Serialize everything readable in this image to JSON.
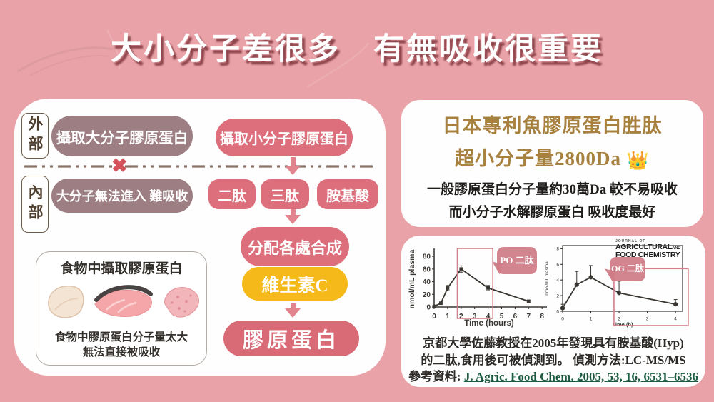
{
  "title": "大小分子差很多　有無吸收很重要",
  "colors": {
    "background": "#e9a2a8",
    "title_shadow": "#863c42",
    "mauve_pill": "#9d7e83",
    "rose_pill": "#dc6f7b",
    "yellow_pill": "#f5ba19",
    "gold_text": "#a8813e",
    "chart_highlight_pink": "#d2808b",
    "link_green": "#1d5a3f"
  },
  "left_panel": {
    "outside_label": "外部",
    "inside_label": "內部",
    "big_molecule_pill": "攝取大分子膠原蛋白",
    "small_molecule_pill": "攝取小分子膠原蛋白",
    "x_mark": "✖",
    "blocked_pill": "大分子無法進入 難吸收",
    "peptide_pills": [
      "二肽",
      "三肽",
      "胺基酸"
    ],
    "synthesis_pill": "分配各處合成",
    "vitamin_pill": "維生素C",
    "collagen_pill": "膠原蛋白",
    "food_box": {
      "title": "食物中攝取膠原蛋白",
      "caption_line1": "食物中膠原蛋白分子量太大",
      "caption_line2": "無法直接被吸收"
    }
  },
  "right_top_panel": {
    "headline_line1": "日本專利魚膠原蛋白胜肽",
    "headline_line2": "超小分子量2800Da",
    "crown_icon": "👑",
    "body_line1": "一般膠原蛋白分子量約30萬Da 較不易吸收",
    "body_line2": "而小分子水解膠原蛋白 吸收度最好"
  },
  "right_bottom_panel": {
    "journal": {
      "top": "JOURNAL OF",
      "line1": "AGRICULTURAL",
      "and": "AND",
      "line2": "FOOD CHEMISTRY"
    },
    "caption_line1": "京都大學佐藤教授在2005年發現具有胺基酸(Hyp)",
    "caption_line2": "的二肽,食用後可被偵測到。 偵測方法:LC-MS/MS",
    "reference_label": "參考資料:",
    "reference_link": "J. Agric. Food Chem. 2005, 53, 16, 6531–6536"
  },
  "chart_data": [
    {
      "type": "line",
      "name": "PO",
      "bubble_label": "PO 二肽",
      "xlabel": "Time (hours)",
      "ylabel": "nmol/mL plasma",
      "xticks": [
        0,
        1,
        2,
        3,
        4,
        5,
        6,
        7,
        8
      ],
      "yticks": [
        0,
        20,
        40,
        60,
        80
      ],
      "xlim": [
        0,
        8.15
      ],
      "ylim": [
        0,
        88
      ],
      "x": [
        0,
        0.5,
        1,
        2,
        4,
        7
      ],
      "y": [
        1,
        6,
        30,
        60,
        30,
        9
      ],
      "yerr": [
        0,
        2,
        4,
        5,
        4,
        2
      ],
      "highlight_x": [
        1.72,
        4.35
      ],
      "grid": false,
      "legend": "none"
    },
    {
      "type": "line",
      "name": "OG",
      "bubble_label": "OG 二肽",
      "xlabel": "Time (h)",
      "ylabel": "nmol/mL plasma",
      "xticks": [
        0,
        1,
        2,
        3,
        4
      ],
      "yticks": [
        0,
        2,
        4,
        6,
        8
      ],
      "xlim": [
        0,
        4.25
      ],
      "ylim": [
        0,
        8.4
      ],
      "x": [
        0,
        0.5,
        1,
        2,
        4
      ],
      "y": [
        0.4,
        3.4,
        4.35,
        2.35,
        0.9
      ],
      "yerr": [
        0.5,
        1.7,
        1.5,
        1.5,
        0.6
      ],
      "highlight_x": [
        1.82,
        4.45
      ],
      "highlight_ytop": 5.45,
      "grid": false,
      "legend": "none"
    }
  ]
}
